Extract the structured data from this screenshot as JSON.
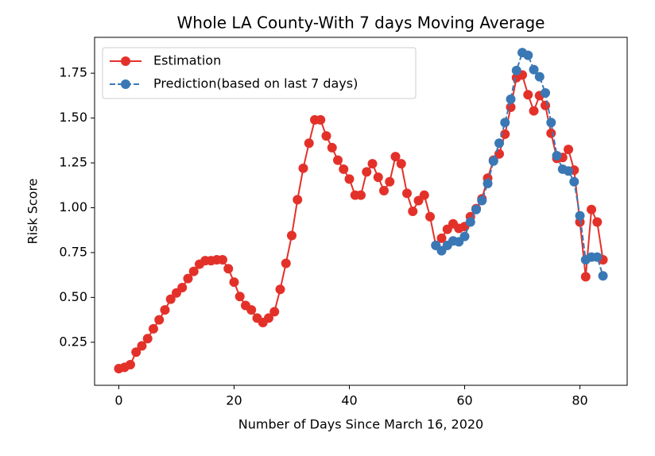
{
  "chart_data": {
    "type": "line",
    "title": "Whole LA County-With 7 days Moving Average",
    "xlabel": "Number of Days Since March 16, 2020",
    "ylabel": "Risk Score",
    "xlim": [
      -4.2,
      88.2
    ],
    "ylim": [
      0.01,
      1.95
    ],
    "xticks": [
      0,
      20,
      40,
      60,
      80
    ],
    "yticks": [
      0.25,
      {
        "value": 0.5,
        "label": "0.50"
      },
      0.75,
      {
        "value": 1.0,
        "label": "1.00"
      },
      1.25,
      {
        "value": 1.5,
        "label": "1.50"
      },
      1.75
    ],
    "legend": "upper left",
    "series": [
      {
        "name": "Estimation",
        "color": "#e3312a",
        "dashed": false,
        "x": [
          0,
          1,
          2,
          3,
          4,
          5,
          6,
          7,
          8,
          9,
          10,
          11,
          12,
          13,
          14,
          15,
          16,
          17,
          18,
          19,
          20,
          21,
          22,
          23,
          24,
          25,
          26,
          27,
          28,
          29,
          30,
          31,
          32,
          33,
          34,
          35,
          36,
          37,
          38,
          39,
          40,
          41,
          42,
          43,
          44,
          45,
          46,
          47,
          48,
          49,
          50,
          51,
          52,
          53,
          54,
          55,
          56,
          57,
          58,
          59,
          60,
          61,
          62,
          63,
          64,
          65,
          66,
          67,
          68,
          69,
          70,
          71,
          72,
          73,
          74,
          75,
          76,
          77,
          78,
          79,
          80,
          81,
          82,
          83,
          84
        ],
        "values": [
          0.103,
          0.11,
          0.125,
          0.195,
          0.23,
          0.27,
          0.325,
          0.375,
          0.43,
          0.49,
          0.525,
          0.555,
          0.605,
          0.645,
          0.685,
          0.705,
          0.705,
          0.71,
          0.71,
          0.66,
          0.585,
          0.505,
          0.455,
          0.43,
          0.385,
          0.36,
          0.385,
          0.42,
          0.545,
          0.69,
          0.845,
          1.045,
          1.22,
          1.36,
          1.49,
          1.49,
          1.4,
          1.335,
          1.265,
          1.215,
          1.16,
          1.07,
          1.07,
          1.2,
          1.245,
          1.17,
          1.095,
          1.145,
          1.285,
          1.245,
          1.08,
          0.98,
          1.04,
          1.07,
          0.95,
          0.79,
          0.83,
          0.88,
          0.91,
          0.885,
          0.895,
          0.95,
          0.995,
          1.05,
          1.165,
          1.265,
          1.3,
          1.41,
          1.56,
          1.725,
          1.74,
          1.63,
          1.54,
          1.625,
          1.57,
          1.415,
          1.275,
          1.28,
          1.325,
          1.21,
          0.92,
          0.615,
          0.99,
          0.92,
          0.71
        ]
      },
      {
        "name": "Prediction(based on last 7 days)",
        "color": "#3a78b5",
        "dashed": true,
        "x": [
          55,
          56,
          57,
          58,
          59,
          60,
          61,
          62,
          63,
          64,
          65,
          66,
          67,
          68,
          69,
          70,
          71,
          72,
          73,
          74,
          75,
          76,
          77,
          78,
          79,
          80,
          81,
          82,
          83,
          84
        ],
        "values": [
          0.79,
          0.76,
          0.79,
          0.815,
          0.81,
          0.84,
          0.92,
          0.99,
          1.04,
          1.135,
          1.26,
          1.36,
          1.475,
          1.605,
          1.765,
          1.865,
          1.85,
          1.77,
          1.73,
          1.64,
          1.475,
          1.29,
          1.215,
          1.205,
          1.145,
          0.955,
          0.71,
          0.725,
          0.725,
          0.62
        ]
      }
    ]
  }
}
